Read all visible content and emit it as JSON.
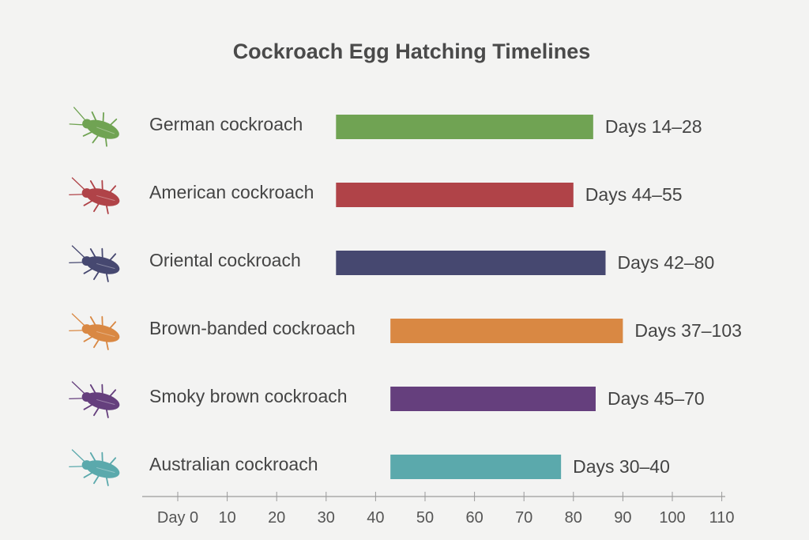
{
  "chart_data": {
    "type": "bar",
    "title": "Cockroach Egg Hatching Timelines",
    "xlabel": "",
    "ylabel": "",
    "x_ticks": [
      "Day 0",
      "10",
      "20",
      "30",
      "40",
      "50",
      "60",
      "70",
      "80",
      "90",
      "100",
      "110"
    ],
    "xlim": [
      0,
      110
    ],
    "grid": false,
    "categories": [
      "German cockroach",
      "American cockroach",
      "Oriental cockroach",
      "Brown-banded cockroach",
      "Smoky brown cockroach",
      "Australian cockroach"
    ],
    "range_labels": [
      "Days 14–28",
      "Days 44–55",
      "Days 42–80",
      "Days 37–103",
      "Days 45–70",
      "Days 30–40"
    ],
    "bar_start": [
      32,
      32,
      32,
      43,
      43,
      43
    ],
    "bar_end": [
      84,
      80,
      86.5,
      90,
      84.5,
      77.5
    ],
    "colors": [
      "#70a353",
      "#b04348",
      "#464870",
      "#d98843",
      "#653f7d",
      "#5ba9ac"
    ],
    "icons": [
      "german-cockroach-icon",
      "american-cockroach-icon",
      "oriental-cockroach-icon",
      "brown-banded-cockroach-icon",
      "smoky-brown-cockroach-icon",
      "australian-cockroach-icon"
    ]
  }
}
